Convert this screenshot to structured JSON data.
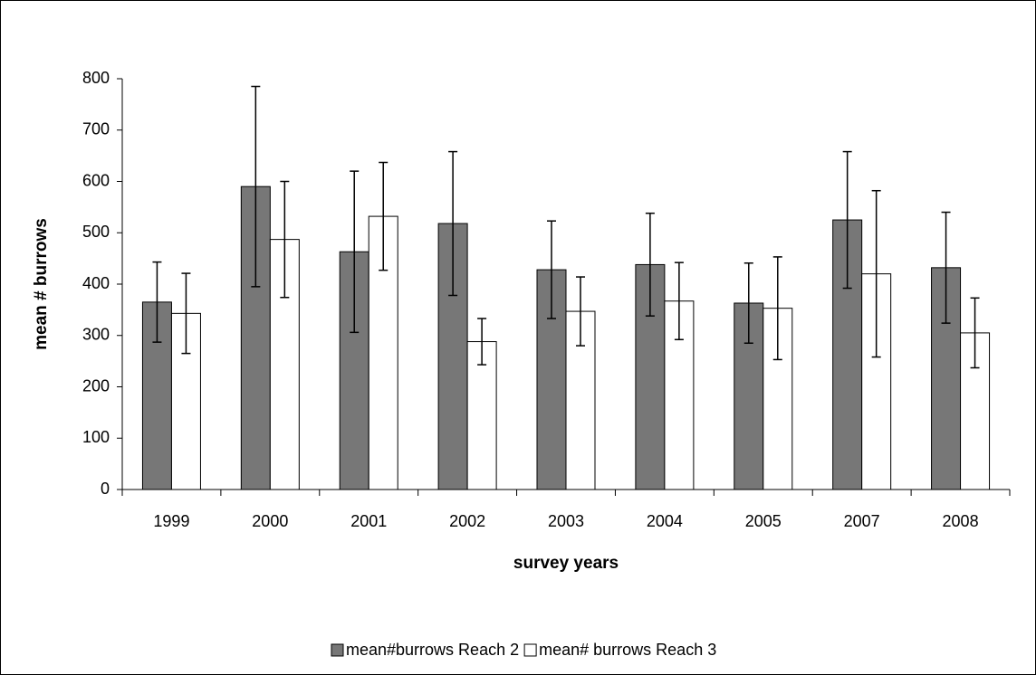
{
  "chart_data": {
    "type": "bar",
    "x_label": "survey years",
    "y_label": "mean # burrows",
    "categories": [
      "1999",
      "2000",
      "2001",
      "2002",
      "2003",
      "2004",
      "2005",
      "2007",
      "2008"
    ],
    "series": [
      {
        "name": "mean#burrows Reach 2",
        "color": "#777777",
        "values": [
          365,
          590,
          463,
          518,
          428,
          438,
          363,
          525,
          432
        ],
        "errors": [
          78,
          195,
          157,
          140,
          95,
          100,
          78,
          133,
          108
        ]
      },
      {
        "name": "mean# burrows Reach 3",
        "color": "#ffffff",
        "values": [
          343,
          487,
          532,
          288,
          347,
          367,
          353,
          420,
          305
        ],
        "errors": [
          78,
          113,
          105,
          45,
          67,
          75,
          100,
          162,
          68
        ]
      }
    ],
    "ylim": [
      0,
      800
    ],
    "yticks": [
      0,
      100,
      200,
      300,
      400,
      500,
      600,
      700,
      800
    ],
    "grid": false,
    "legend": "bottom"
  }
}
